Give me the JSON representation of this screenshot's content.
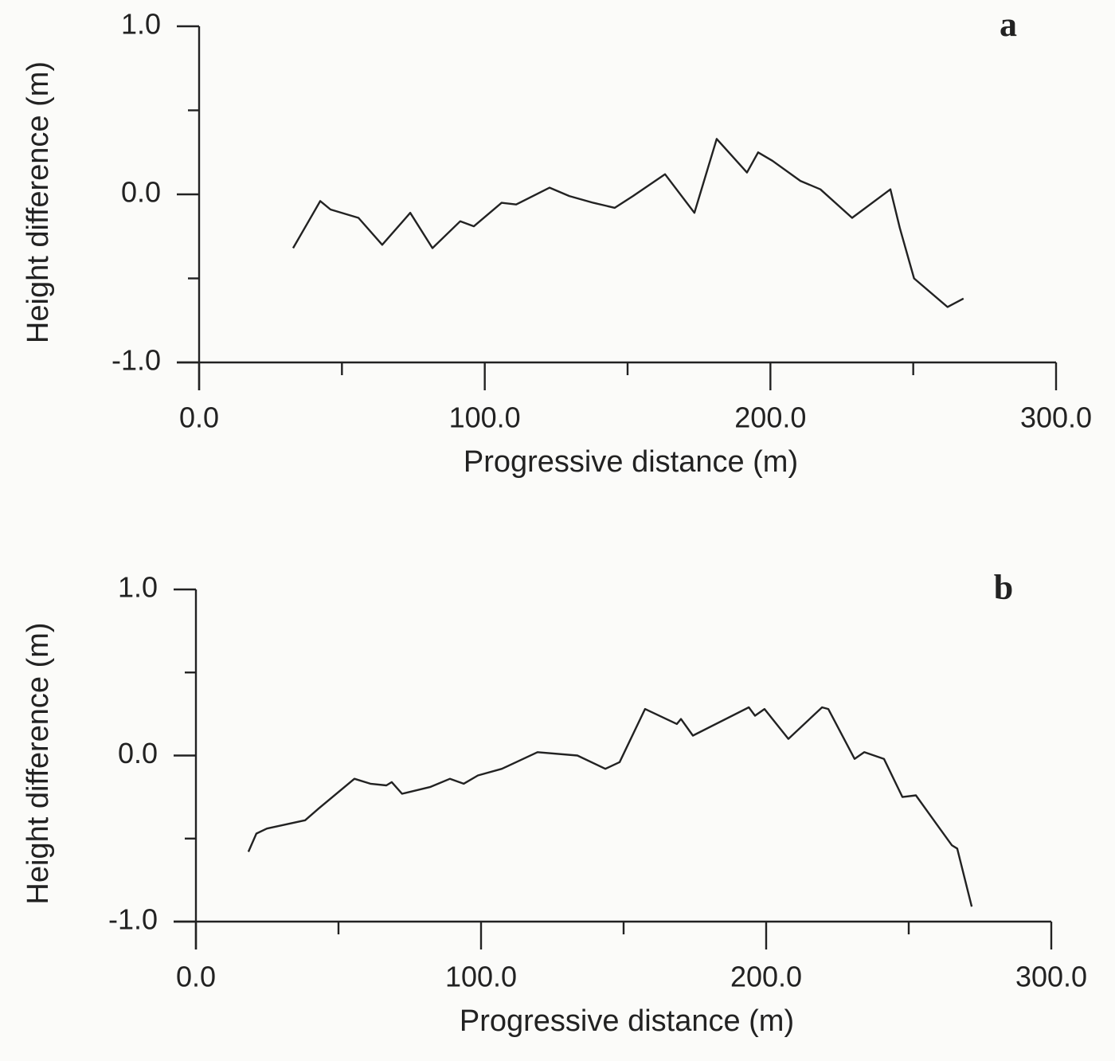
{
  "chart_data": [
    {
      "type": "line",
      "annotation": "a",
      "xlabel": "Progressive distance (m)",
      "ylabel": "Height difference (m)",
      "xlim": [
        0,
        300
      ],
      "ylim": [
        -1,
        1
      ],
      "xticks": [
        {
          "value": 0,
          "label": "0.0"
        },
        {
          "value": 100,
          "label": "100.0"
        },
        {
          "value": 200,
          "label": "200.0"
        },
        {
          "value": 300,
          "label": "300.0"
        }
      ],
      "xminorticks": [
        50,
        150,
        250
      ],
      "yticks": [
        {
          "value": -1,
          "label": "-1.0"
        },
        {
          "value": 0,
          "label": "0.0"
        },
        {
          "value": 1,
          "label": "1.0"
        }
      ],
      "yminorticks": [
        -0.5,
        0.5
      ],
      "color": "#222222",
      "x": [
        32.9,
        42.4,
        46,
        55.8,
        64.1,
        73.9,
        81.7,
        91.4,
        96.2,
        105.9,
        111,
        122.7,
        129.6,
        138,
        145.5,
        151.9,
        163.1,
        173.4,
        181.2,
        191.8,
        195.7,
        200.7,
        210.5,
        217.5,
        228.6,
        242,
        245.3,
        250.3,
        262,
        267.6
      ],
      "values": [
        -0.32,
        -0.04,
        -0.09,
        -0.14,
        -0.3,
        -0.11,
        -0.32,
        -0.16,
        -0.19,
        -0.05,
        -0.06,
        0.04,
        -0.01,
        -0.05,
        -0.08,
        -0.01,
        0.12,
        -0.11,
        0.33,
        0.13,
        0.25,
        0.2,
        0.08,
        0.03,
        -0.14,
        0.03,
        -0.2,
        -0.5,
        -0.67,
        -0.62
      ]
    },
    {
      "type": "line",
      "annotation": "b",
      "xlabel": "Progressive distance (m)",
      "ylabel": "Height difference (m)",
      "xlim": [
        0,
        300
      ],
      "ylim": [
        -1,
        1
      ],
      "xticks": [
        {
          "value": 0,
          "label": "0.0"
        },
        {
          "value": 100,
          "label": "100.0"
        },
        {
          "value": 200,
          "label": "200.0"
        },
        {
          "value": 300,
          "label": "300.0"
        }
      ],
      "xminorticks": [
        50,
        150,
        250
      ],
      "yticks": [
        {
          "value": -1,
          "label": "-1.0"
        },
        {
          "value": 0,
          "label": "0.0"
        },
        {
          "value": 1,
          "label": "1.0"
        }
      ],
      "yminorticks": [
        -0.5,
        0.5
      ],
      "color": "#222222",
      "x": [
        18.4,
        21.2,
        24.9,
        38.3,
        43,
        55.6,
        61.2,
        66.8,
        68.7,
        72.3,
        82.1,
        89.1,
        93.9,
        98.9,
        107.3,
        119.8,
        133.8,
        143.6,
        148.6,
        157.5,
        168.7,
        170.1,
        174.3,
        193.9,
        196.1,
        199.4,
        207.8,
        219.6,
        221.8,
        231,
        234.4,
        241.3,
        247.8,
        252.5,
        260.9,
        265.1,
        267,
        272.1
      ],
      "values": [
        -0.58,
        -0.47,
        -0.44,
        -0.39,
        -0.32,
        -0.14,
        -0.17,
        -0.18,
        -0.16,
        -0.23,
        -0.19,
        -0.14,
        -0.17,
        -0.12,
        -0.08,
        0.02,
        0,
        -0.08,
        -0.04,
        0.28,
        0.19,
        0.22,
        0.12,
        0.29,
        0.24,
        0.28,
        0.1,
        0.29,
        0.28,
        -0.02,
        0.02,
        -0.02,
        -0.25,
        -0.24,
        -0.44,
        -0.54,
        -0.56,
        -0.91
      ]
    }
  ]
}
